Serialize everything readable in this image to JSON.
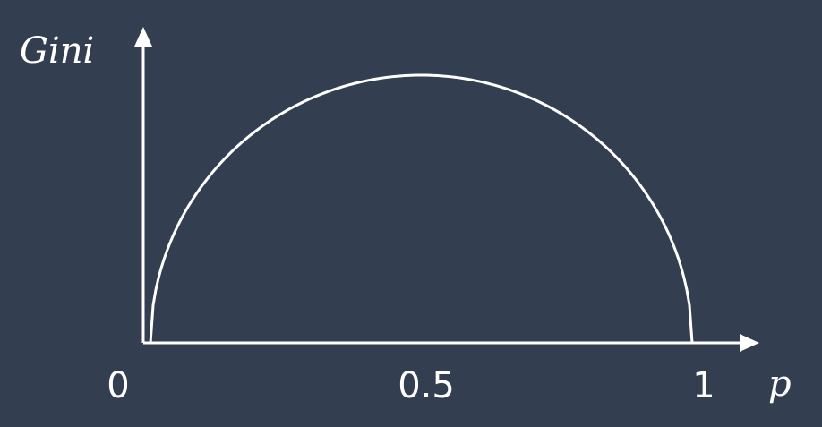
{
  "colors": {
    "background": "#333e50",
    "foreground": "#ffffff"
  },
  "chart_data": {
    "type": "line",
    "title": "",
    "xlabel": "p",
    "ylabel": "Gini",
    "xlim": [
      0,
      1
    ],
    "ylim": [
      0,
      0.5
    ],
    "x_ticks": [
      "0",
      "0.5",
      "1"
    ],
    "grid": false,
    "series": [
      {
        "curve": "semicircle",
        "x": [
          0,
          0.05,
          0.1,
          0.2,
          0.3,
          0.4,
          0.5,
          0.6,
          0.7,
          0.8,
          0.9,
          0.95,
          1
        ],
        "y": [
          0,
          0.218,
          0.3,
          0.4,
          0.458,
          0.49,
          0.5,
          0.49,
          0.458,
          0.4,
          0.3,
          0.218,
          0
        ]
      }
    ]
  }
}
